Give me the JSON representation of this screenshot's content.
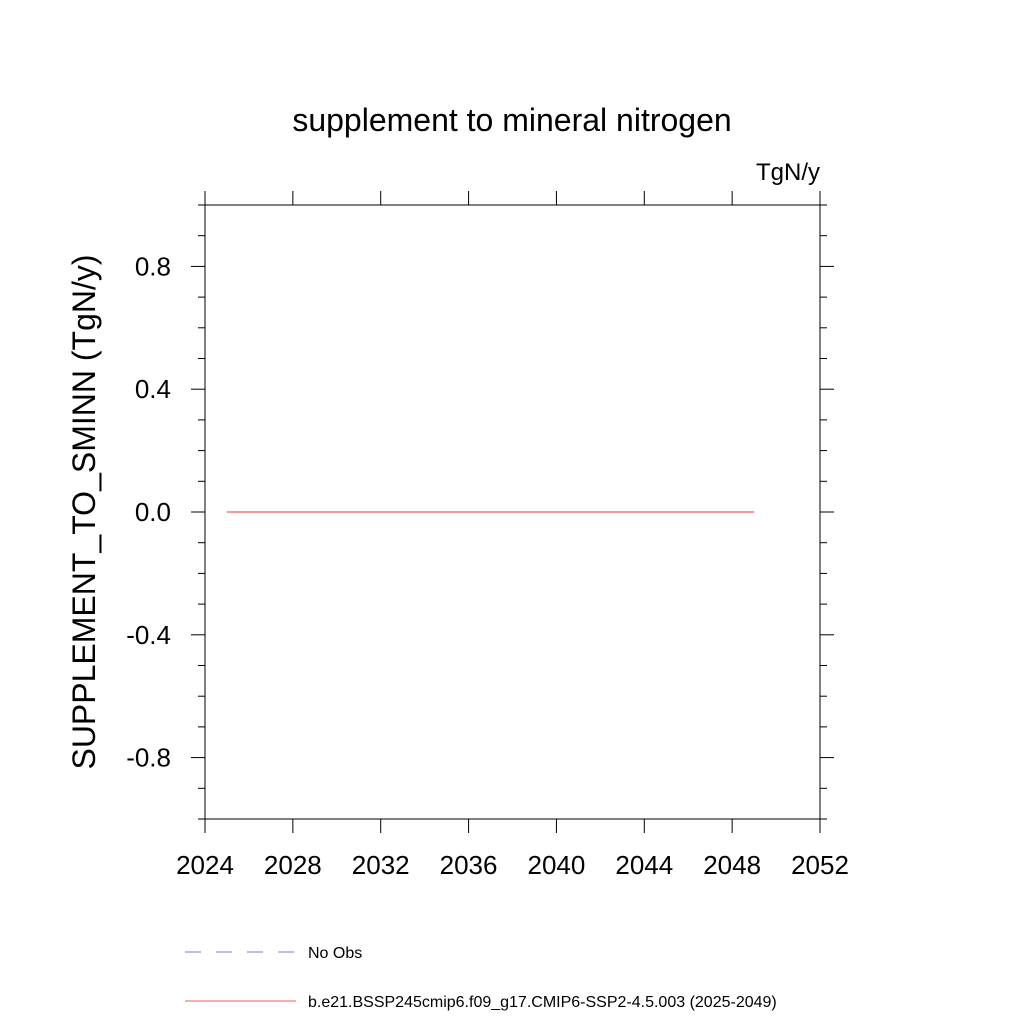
{
  "chart_data": {
    "type": "line",
    "title": "supplement to mineral nitrogen",
    "units": "TgN/y",
    "ylabel": "SUPPLEMENT_TO_SMINN  (TgN/y)",
    "xlabel": "",
    "xlim": [
      2024,
      2052
    ],
    "ylim": [
      -1.0,
      1.0
    ],
    "x_ticks": [
      2024,
      2028,
      2032,
      2036,
      2040,
      2044,
      2048,
      2052
    ],
    "x_tick_labels": [
      "2024",
      "2028",
      "2032",
      "2036",
      "2040",
      "2044",
      "2048",
      "2052"
    ],
    "x_minor_ticks": [],
    "y_ticks": [
      -0.8,
      -0.4,
      0.0,
      0.4,
      0.8
    ],
    "y_tick_labels": [
      "-0.8",
      "-0.4",
      "0.0",
      "0.4",
      "0.8"
    ],
    "y_minor_ticks": [
      -1.0,
      -0.9,
      -0.7,
      -0.6,
      -0.5,
      -0.3,
      -0.2,
      -0.1,
      0.1,
      0.2,
      0.3,
      0.5,
      0.6,
      0.7,
      0.9,
      1.0
    ],
    "grid": false,
    "legend_position": "bottom",
    "series": [
      {
        "name": "No Obs",
        "color": "#7b7bd6",
        "dash": "dashed",
        "x": [],
        "y": []
      },
      {
        "name": "b.e21.BSSP245cmip6.f09_g17.CMIP6-SSP2-4.5.003 (2025-2049)",
        "color": "#f05a5a",
        "dash": "solid",
        "x": [
          2025,
          2026,
          2027,
          2028,
          2029,
          2030,
          2031,
          2032,
          2033,
          2034,
          2035,
          2036,
          2037,
          2038,
          2039,
          2040,
          2041,
          2042,
          2043,
          2044,
          2045,
          2046,
          2047,
          2048,
          2049
        ],
        "y": [
          0,
          0,
          0,
          0,
          0,
          0,
          0,
          0,
          0,
          0,
          0,
          0,
          0,
          0,
          0,
          0,
          0,
          0,
          0,
          0,
          0,
          0,
          0,
          0,
          0
        ]
      }
    ]
  }
}
